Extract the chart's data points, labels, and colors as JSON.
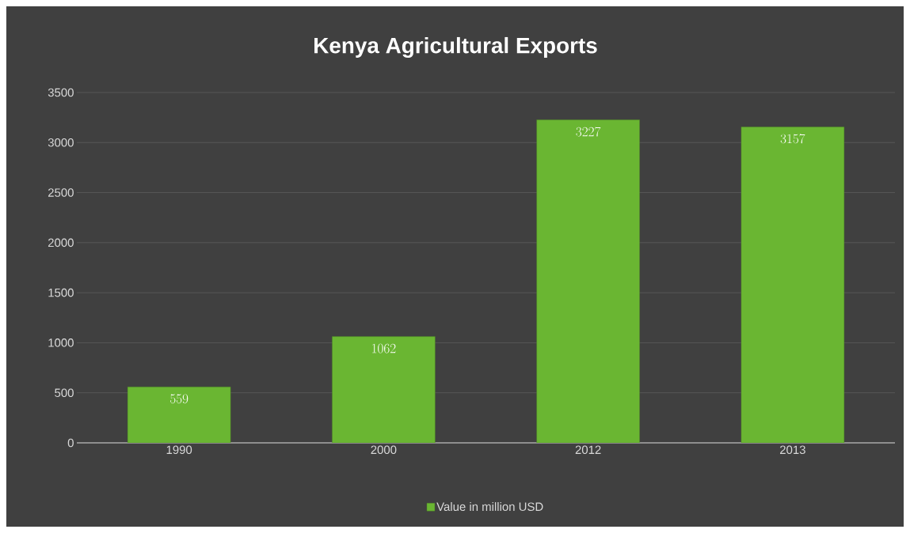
{
  "chart_data": {
    "type": "bar",
    "title": "Kenya Agricultural Exports",
    "categories": [
      "1990",
      "2000",
      "2012",
      "2013"
    ],
    "series": [
      {
        "name": "Value in million USD",
        "color": "#6ab632",
        "values": [
          559,
          1062,
          3227,
          3157
        ]
      }
    ],
    "ylim": [
      0,
      3500
    ],
    "yticks": [
      0,
      500,
      1000,
      1500,
      2000,
      2500,
      3000,
      3500
    ],
    "grid": "y",
    "legend": "bottom",
    "data_labels": true
  }
}
